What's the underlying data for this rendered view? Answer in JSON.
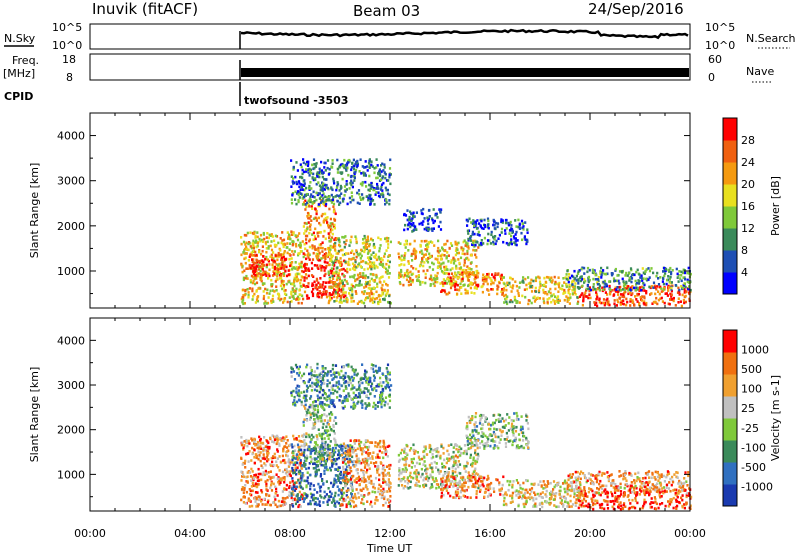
{
  "header": {
    "station": "Inuvik (fitACF)",
    "beam": "Beam 03",
    "date": "24/Sep/2016"
  },
  "top_panels": {
    "nsky_label": "N.Sky",
    "nsky_ticks": [
      "10^5",
      "10^0"
    ],
    "nsearch_label": "N.Search",
    "nsearch_ticks": [
      "10^5",
      "10^0"
    ],
    "freq_label": "Freq.",
    "freq_unit": "[MHz]",
    "freq_ticks": [
      "18",
      "8"
    ],
    "nave_label": "Nave",
    "nave_ticks": [
      "60",
      "0"
    ],
    "cpid_label": "CPID",
    "cpid_value": "twofsound -3503"
  },
  "chart_data": [
    {
      "type": "heatmap",
      "name": "power",
      "ylabel": "Slant Range [km]",
      "xlabel": "",
      "ylim": [
        180,
        4500
      ],
      "xlim": [
        0,
        24
      ],
      "yticks": [
        "4000",
        "3000",
        "2000",
        "1000"
      ],
      "xticks": [
        "00:00",
        "04:00",
        "08:00",
        "12:00",
        "16:00",
        "20:00",
        "00:00"
      ],
      "colorbar_label": "Power [dB]",
      "colorbar_ticks": [
        "28",
        "24",
        "20",
        "16",
        "12",
        "8",
        "4"
      ],
      "colors": [
        "#0000ff",
        "#1e4fb4",
        "#3a8a5a",
        "#7fc93a",
        "#e8e020",
        "#f59a10",
        "#f06010",
        "#ff0000"
      ],
      "regions": [
        {
          "t0": 6.0,
          "t1": 8.5,
          "r0": 300,
          "r1": 1900,
          "level": 0.6
        },
        {
          "t0": 6.3,
          "t1": 8.0,
          "r0": 900,
          "r1": 1400,
          "level": 0.9
        },
        {
          "t0": 8.5,
          "t1": 10.2,
          "r0": 400,
          "r1": 1300,
          "level": 0.95
        },
        {
          "t0": 8.5,
          "t1": 9.8,
          "r0": 1300,
          "r1": 2600,
          "level": 0.7
        },
        {
          "t0": 9.5,
          "t1": 12.0,
          "r0": 300,
          "r1": 1800,
          "level": 0.55
        },
        {
          "t0": 12.3,
          "t1": 15.5,
          "r0": 700,
          "r1": 1700,
          "level": 0.6
        },
        {
          "t0": 14.0,
          "t1": 16.5,
          "r0": 500,
          "r1": 1000,
          "level": 0.75
        },
        {
          "t0": 15.0,
          "t1": 17.5,
          "r0": 1600,
          "r1": 2200,
          "level": 0.2
        },
        {
          "t0": 16.5,
          "t1": 19.5,
          "r0": 300,
          "r1": 900,
          "level": 0.55
        },
        {
          "t0": 19.5,
          "t1": 24.0,
          "r0": 250,
          "r1": 700,
          "level": 0.85
        },
        {
          "t0": 19.0,
          "t1": 24.0,
          "r0": 600,
          "r1": 1100,
          "level": 0.3
        },
        {
          "t0": 8.0,
          "t1": 12.0,
          "r0": 2500,
          "r1": 3500,
          "level": 0.25
        },
        {
          "t0": 12.5,
          "t1": 14.0,
          "r0": 1900,
          "r1": 2400,
          "level": 0.15
        }
      ]
    },
    {
      "type": "heatmap",
      "name": "velocity",
      "ylabel": "Slant Range [km]",
      "xlabel": "Time UT",
      "ylim": [
        180,
        4500
      ],
      "xlim": [
        0,
        24
      ],
      "yticks": [
        "4000",
        "3000",
        "2000",
        "1000"
      ],
      "xticks": [
        "00:00",
        "04:00",
        "08:00",
        "12:00",
        "16:00",
        "20:00",
        "00:00"
      ],
      "colorbar_label": "Velocity [m s-1]",
      "colorbar_ticks": [
        "1000",
        "500",
        "100",
        "25",
        "-25",
        "-100",
        "-500",
        "-1000"
      ],
      "colors": [
        "#1a3ab0",
        "#3070c0",
        "#3a8a5a",
        "#7fc93a",
        "#c0c0c0",
        "#f0a030",
        "#f07010",
        "#ff0000"
      ],
      "regions": [
        {
          "t0": 6.0,
          "t1": 8.5,
          "r0": 300,
          "r1": 1900,
          "level": 0.75
        },
        {
          "t0": 8.0,
          "t1": 10.5,
          "r0": 300,
          "r1": 1700,
          "level": 0.2
        },
        {
          "t0": 8.5,
          "t1": 9.8,
          "r0": 1300,
          "r1": 2600,
          "level": 0.45
        },
        {
          "t0": 10.0,
          "t1": 12.0,
          "r0": 300,
          "r1": 1800,
          "level": 0.7
        },
        {
          "t0": 12.3,
          "t1": 15.5,
          "r0": 700,
          "r1": 1700,
          "level": 0.55
        },
        {
          "t0": 14.0,
          "t1": 16.5,
          "r0": 500,
          "r1": 1000,
          "level": 0.75
        },
        {
          "t0": 15.0,
          "t1": 17.5,
          "r0": 1600,
          "r1": 2400,
          "level": 0.45
        },
        {
          "t0": 16.5,
          "t1": 19.5,
          "r0": 300,
          "r1": 900,
          "level": 0.6
        },
        {
          "t0": 19.5,
          "t1": 24.0,
          "r0": 250,
          "r1": 700,
          "level": 0.85
        },
        {
          "t0": 19.0,
          "t1": 24.0,
          "r0": 600,
          "r1": 1100,
          "level": 0.7
        },
        {
          "t0": 8.0,
          "t1": 12.0,
          "r0": 2500,
          "r1": 3500,
          "level": 0.3
        }
      ]
    }
  ]
}
